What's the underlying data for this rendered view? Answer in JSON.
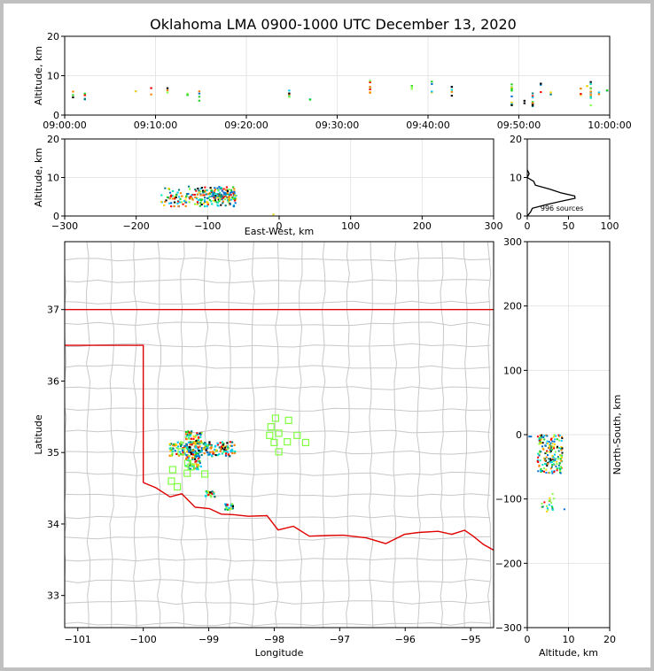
{
  "title": "Oklahoma LMA 0900-1000 UTC December 13, 2020",
  "chart_data": [
    {
      "id": "time-height",
      "type": "scatter",
      "ylabel": "Altitude, km",
      "xlabel": "",
      "xlim_minutes": [
        0,
        60
      ],
      "ylim": [
        0,
        20
      ],
      "xticks": [
        {
          "v": 0,
          "label": "09:00:00"
        },
        {
          "v": 10,
          "label": "09:10:00"
        },
        {
          "v": 20,
          "label": "09:20:00"
        },
        {
          "v": 30,
          "label": "09:30:00"
        },
        {
          "v": 40,
          "label": "09:40:00"
        },
        {
          "v": 50,
          "label": "09:50:00"
        },
        {
          "v": 60,
          "label": "10:00:00"
        }
      ],
      "yticks": [
        0,
        10,
        20
      ],
      "grid": true,
      "columns": [
        {
          "t": 0.9,
          "lo": 4.5,
          "hi": 6.5
        },
        {
          "t": 2.2,
          "lo": 3,
          "hi": 6
        },
        {
          "t": 7.8,
          "lo": 5,
          "hi": 6.5
        },
        {
          "t": 9.5,
          "lo": 5,
          "hi": 7
        },
        {
          "t": 11.3,
          "lo": 5,
          "hi": 7
        },
        {
          "t": 13.5,
          "lo": 5,
          "hi": 5.5
        },
        {
          "t": 14.8,
          "lo": 3.5,
          "hi": 6.2
        },
        {
          "t": 24.7,
          "lo": 3.5,
          "hi": 6.5
        },
        {
          "t": 27,
          "lo": 3.5,
          "hi": 4.5
        },
        {
          "t": 33.6,
          "lo": 4,
          "hi": 9
        },
        {
          "t": 38.2,
          "lo": 6,
          "hi": 8
        },
        {
          "t": 40.4,
          "lo": 5.5,
          "hi": 8.5
        },
        {
          "t": 42.6,
          "lo": 4.5,
          "hi": 7.5
        },
        {
          "t": 49.2,
          "lo": 2.5,
          "hi": 8.5
        },
        {
          "t": 50.6,
          "lo": 3,
          "hi": 4
        },
        {
          "t": 51.5,
          "lo": 2,
          "hi": 7
        },
        {
          "t": 52.4,
          "lo": 5.5,
          "hi": 8
        },
        {
          "t": 53.5,
          "lo": 5,
          "hi": 6
        },
        {
          "t": 56.8,
          "lo": 4.5,
          "hi": 7
        },
        {
          "t": 57.5,
          "lo": 7,
          "hi": 7.5
        },
        {
          "t": 57.9,
          "lo": 1,
          "hi": 8.5
        },
        {
          "t": 58.8,
          "lo": 5,
          "hi": 6
        },
        {
          "t": 59.7,
          "lo": 6,
          "hi": 7
        }
      ]
    },
    {
      "id": "east-west-altitude",
      "type": "scatter",
      "xlabel": "East-West, km",
      "ylabel": "Altitude, km",
      "xlim": [
        -300,
        300
      ],
      "ylim": [
        0,
        20
      ],
      "xticks": [
        -300,
        -200,
        -100,
        0,
        100,
        200,
        300
      ],
      "yticks": [
        0,
        10,
        20
      ],
      "grid": true,
      "clusters": [
        {
          "x0": -165,
          "x1": -60,
          "z0": 2.5,
          "z1": 9
        }
      ]
    },
    {
      "id": "altitude-histogram",
      "type": "line",
      "xlim": [
        0,
        100
      ],
      "ylim": [
        0,
        20
      ],
      "xticks": [
        0,
        50,
        100
      ],
      "yticks": [
        0,
        10,
        20
      ],
      "annotation": "996 sources",
      "profile": [
        [
          0,
          0
        ],
        [
          2,
          1
        ],
        [
          8,
          2
        ],
        [
          22,
          3
        ],
        [
          45,
          4
        ],
        [
          58,
          4.6
        ],
        [
          55,
          5.2
        ],
        [
          40,
          6
        ],
        [
          25,
          7
        ],
        [
          12,
          8
        ],
        [
          5,
          9
        ],
        [
          2,
          10
        ],
        [
          0.5,
          11
        ],
        [
          0,
          12
        ]
      ]
    },
    {
      "id": "plan-view-map",
      "type": "scatter",
      "xlabel": "Longitude",
      "ylabel": "Latitude",
      "xlim": [
        -101.2,
        -94.65
      ],
      "ylim": [
        32.55,
        37.95
      ],
      "xticks": [
        -101,
        -100,
        -99,
        -98,
        -97,
        -96,
        -95
      ],
      "yticks": [
        33,
        34,
        35,
        36,
        37
      ],
      "state_border_color": "#e00000",
      "county_line_color": "#c8c8c8",
      "stations": [
        [
          -97.98,
          35.48
        ],
        [
          -97.78,
          35.45
        ],
        [
          -98.05,
          35.36
        ],
        [
          -97.93,
          35.27
        ],
        [
          -98.07,
          35.24
        ],
        [
          -97.65,
          35.24
        ],
        [
          -97.8,
          35.15
        ],
        [
          -98.0,
          35.14
        ],
        [
          -97.52,
          35.14
        ],
        [
          -97.93,
          35.01
        ],
        [
          -99.42,
          35.01
        ],
        [
          -99.32,
          34.85
        ],
        [
          -99.27,
          34.8
        ],
        [
          -99.55,
          34.76
        ],
        [
          -99.06,
          34.7
        ],
        [
          -99.33,
          34.71
        ],
        [
          -99.57,
          34.6
        ],
        [
          -99.48,
          34.52
        ]
      ],
      "source_clusters": [
        {
          "lon0": -99.6,
          "lon1": -98.6,
          "lat0": 34.95,
          "lat1": 35.15
        },
        {
          "lon0": -99.35,
          "lon1": -99.1,
          "lat0": 34.75,
          "lat1": 35.3
        },
        {
          "lon0": -99.05,
          "lon1": -98.9,
          "lat0": 34.38,
          "lat1": 34.46
        },
        {
          "lon0": -98.75,
          "lon1": -98.62,
          "lat0": 34.2,
          "lat1": 34.28
        }
      ]
    },
    {
      "id": "altitude-north-south",
      "type": "scatter",
      "xlabel": "Altitude, km",
      "ylabel": "North-South, km",
      "xlim": [
        0,
        20
      ],
      "ylim": [
        -300,
        300
      ],
      "xticks": [
        0,
        10,
        20
      ],
      "yticks": [
        -300,
        -200,
        -100,
        0,
        100,
        200,
        300
      ],
      "clusters": [
        {
          "z0": 2.5,
          "z1": 8.5,
          "y0": -60,
          "y1": 0
        },
        {
          "z0": 3.5,
          "z1": 6.5,
          "y0": -120,
          "y1": -90
        }
      ]
    }
  ]
}
